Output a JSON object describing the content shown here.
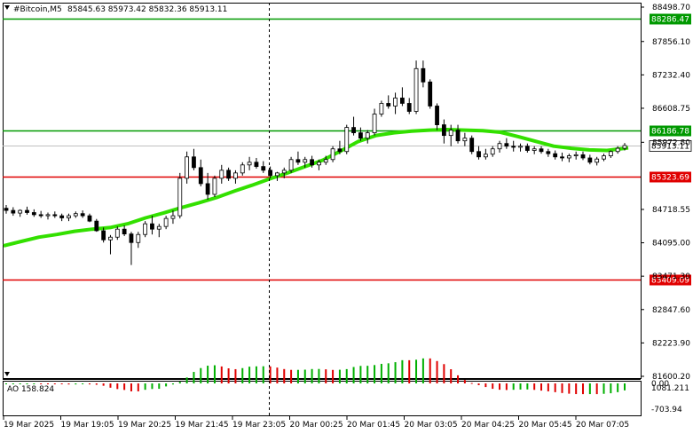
{
  "header": {
    "symbol": "#Bitcoin,M5",
    "ohlc": "85845.63 85973.42 85832.36 85913.11"
  },
  "indicator": {
    "label": "AO 158.824",
    "axis_ticks": [
      "1081.211",
      "0.00",
      "-703.94"
    ]
  },
  "price_axis": {
    "ticks": [
      "88498.70",
      "87856.10",
      "87232.40",
      "86608.75",
      "85972.80",
      "84718.55",
      "84095.00",
      "83471.30",
      "82847.60",
      "82223.90",
      "81600.20"
    ]
  },
  "levels": [
    {
      "name": "resistance-high",
      "label": "88286.47",
      "price": 88286.47,
      "color": "#009900"
    },
    {
      "name": "resistance",
      "label": "86186.78",
      "price": 86186.78,
      "color": "#009900"
    },
    {
      "name": "support",
      "label": "85323.69",
      "price": 85323.69,
      "color": "#e00000"
    },
    {
      "name": "support-low",
      "label": "83409.09",
      "price": 83409.09,
      "color": "#e00000"
    }
  ],
  "current_price": {
    "label": "85913.11",
    "price": 85913.11
  },
  "time_axis": {
    "labels": [
      "19 Mar 2025",
      "19 Mar 19:05",
      "19 Mar 20:25",
      "19 Mar 21:45",
      "19 Mar 23:05",
      "20 Mar 00:25",
      "20 Mar 01:45",
      "20 Mar 03:05",
      "20 Mar 04:25",
      "20 Mar 05:45",
      "20 Mar 07:05"
    ]
  },
  "chart_data": {
    "type": "candlestick",
    "title": "#Bitcoin,M5",
    "ylim": [
      81600.2,
      88498.7
    ],
    "moving_average_points": [
      [
        0,
        84040
      ],
      [
        20,
        84120
      ],
      [
        40,
        84200
      ],
      [
        60,
        84250
      ],
      [
        80,
        84310
      ],
      [
        100,
        84350
      ],
      [
        120,
        84380
      ],
      [
        140,
        84450
      ],
      [
        160,
        84560
      ],
      [
        180,
        84650
      ],
      [
        200,
        84750
      ],
      [
        220,
        84840
      ],
      [
        240,
        84940
      ],
      [
        260,
        85060
      ],
      [
        280,
        85170
      ],
      [
        300,
        85290
      ],
      [
        320,
        85400
      ],
      [
        340,
        85520
      ],
      [
        360,
        85640
      ],
      [
        380,
        85810
      ],
      [
        400,
        85990
      ],
      [
        420,
        86100
      ],
      [
        440,
        86150
      ],
      [
        460,
        86180
      ],
      [
        480,
        86200
      ],
      [
        500,
        86210
      ],
      [
        520,
        86200
      ],
      [
        540,
        86190
      ],
      [
        560,
        86160
      ],
      [
        580,
        86080
      ],
      [
        600,
        85990
      ],
      [
        620,
        85900
      ],
      [
        640,
        85860
      ],
      [
        660,
        85830
      ],
      [
        680,
        85820
      ],
      [
        700,
        85860
      ],
      [
        704,
        85870
      ]
    ],
    "candles": [
      [
        84740,
        84800,
        84640,
        84700
      ],
      [
        84700,
        84760,
        84600,
        84650
      ],
      [
        84650,
        84720,
        84580,
        84700
      ],
      [
        84700,
        84770,
        84620,
        84660
      ],
      [
        84660,
        84720,
        84580,
        84620
      ],
      [
        84620,
        84690,
        84560,
        84600
      ],
      [
        84600,
        84660,
        84530,
        84620
      ],
      [
        84620,
        84680,
        84560,
        84600
      ],
      [
        84600,
        84640,
        84500,
        84560
      ],
      [
        84560,
        84640,
        84500,
        84600
      ],
      [
        84600,
        84680,
        84560,
        84640
      ],
      [
        84640,
        84700,
        84560,
        84600
      ],
      [
        84600,
        84640,
        84480,
        84500
      ],
      [
        84500,
        84540,
        84300,
        84320
      ],
      [
        84320,
        84380,
        84100,
        84150
      ],
      [
        84150,
        84240,
        83880,
        84200
      ],
      [
        84200,
        84400,
        84150,
        84350
      ],
      [
        84350,
        84420,
        84220,
        84260
      ],
      [
        84260,
        84300,
        83680,
        84100
      ],
      [
        84100,
        84300,
        84000,
        84250
      ],
      [
        84250,
        84500,
        84200,
        84450
      ],
      [
        84450,
        84600,
        84250,
        84350
      ],
      [
        84350,
        84450,
        84200,
        84400
      ],
      [
        84400,
        84600,
        84350,
        84550
      ],
      [
        84550,
        84700,
        84450,
        84600
      ],
      [
        84600,
        85400,
        84550,
        85300
      ],
      [
        85300,
        85800,
        85200,
        85700
      ],
      [
        85700,
        85850,
        85450,
        85500
      ],
      [
        85500,
        85650,
        85150,
        85200
      ],
      [
        85200,
        85400,
        84900,
        85000
      ],
      [
        85000,
        85350,
        84950,
        85300
      ],
      [
        85300,
        85550,
        85200,
        85450
      ],
      [
        85450,
        85500,
        85250,
        85300
      ],
      [
        85300,
        85450,
        85200,
        85400
      ],
      [
        85400,
        85600,
        85350,
        85550
      ],
      [
        85550,
        85700,
        85450,
        85600
      ],
      [
        85600,
        85680,
        85480,
        85520
      ],
      [
        85520,
        85620,
        85400,
        85450
      ],
      [
        85450,
        85520,
        85300,
        85350
      ],
      [
        85350,
        85420,
        85250,
        85400
      ],
      [
        85400,
        85500,
        85300,
        85450
      ],
      [
        85450,
        85700,
        85400,
        85650
      ],
      [
        85650,
        85800,
        85550,
        85600
      ],
      [
        85600,
        85700,
        85500,
        85650
      ],
      [
        85650,
        85720,
        85500,
        85550
      ],
      [
        85550,
        85650,
        85450,
        85600
      ],
      [
        85600,
        85720,
        85550,
        85650
      ],
      [
        85650,
        85900,
        85600,
        85850
      ],
      [
        85850,
        86000,
        85750,
        85800
      ],
      [
        85800,
        86300,
        85750,
        86250
      ],
      [
        86250,
        86450,
        86100,
        86150
      ],
      [
        86150,
        86250,
        86000,
        86050
      ],
      [
        86050,
        86200,
        85950,
        86150
      ],
      [
        86150,
        86600,
        86100,
        86500
      ],
      [
        86500,
        86750,
        86450,
        86700
      ],
      [
        86700,
        86850,
        86600,
        86650
      ],
      [
        86650,
        86900,
        86500,
        86800
      ],
      [
        86800,
        87000,
        86650,
        86700
      ],
      [
        86700,
        86800,
        86500,
        86550
      ],
      [
        86550,
        87500,
        86500,
        87350
      ],
      [
        87350,
        87500,
        87000,
        87100
      ],
      [
        87100,
        87150,
        86600,
        86650
      ],
      [
        86650,
        86700,
        86200,
        86300
      ],
      [
        86300,
        86400,
        85950,
        86100
      ],
      [
        86100,
        86300,
        85900,
        86200
      ],
      [
        86200,
        86300,
        85950,
        86000
      ],
      [
        86000,
        86150,
        85900,
        86050
      ],
      [
        86050,
        86100,
        85750,
        85800
      ],
      [
        85800,
        85900,
        85650,
        85700
      ],
      [
        85700,
        85850,
        85650,
        85750
      ],
      [
        85750,
        85900,
        85700,
        85850
      ],
      [
        85850,
        86000,
        85780,
        85950
      ],
      [
        85950,
        86050,
        85850,
        85900
      ],
      [
        85900,
        86000,
        85800,
        85880
      ],
      [
        85880,
        85950,
        85800,
        85900
      ],
      [
        85900,
        85950,
        85780,
        85820
      ],
      [
        85820,
        85900,
        85750,
        85850
      ],
      [
        85850,
        85900,
        85760,
        85800
      ],
      [
        85800,
        85850,
        85700,
        85760
      ],
      [
        85760,
        85820,
        85650,
        85700
      ],
      [
        85700,
        85780,
        85620,
        85680
      ],
      [
        85680,
        85760,
        85600,
        85720
      ],
      [
        85720,
        85800,
        85650,
        85740
      ],
      [
        85740,
        85800,
        85640,
        85680
      ],
      [
        85680,
        85740,
        85560,
        85600
      ],
      [
        85600,
        85700,
        85540,
        85660
      ],
      [
        85660,
        85760,
        85620,
        85720
      ],
      [
        85720,
        85820,
        85680,
        85800
      ],
      [
        85800,
        85900,
        85760,
        85860
      ],
      [
        85860,
        85960,
        85820,
        85913
      ]
    ]
  }
}
